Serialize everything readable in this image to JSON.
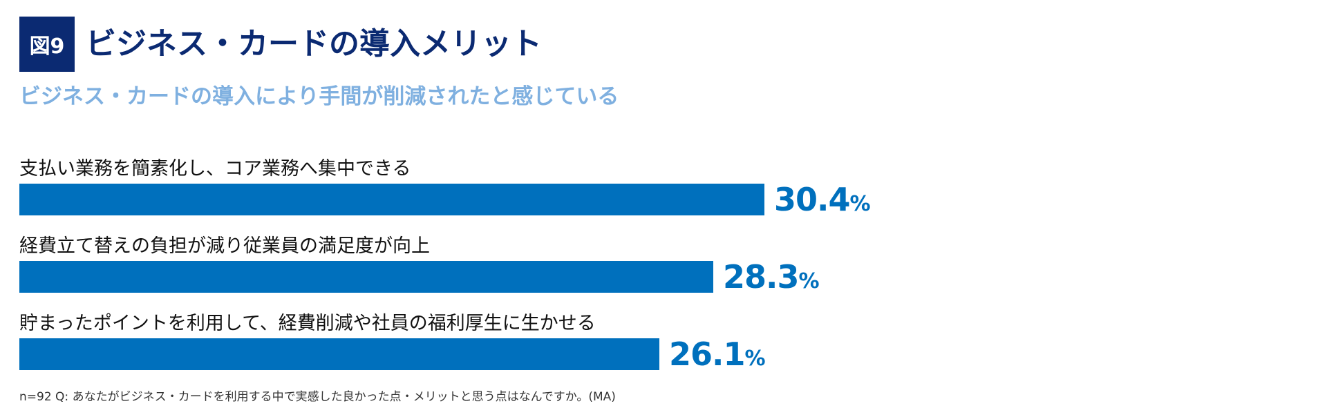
{
  "figure_label": "図9",
  "title": "ビジネス・カードの導入メリット",
  "subtitle": "ビジネス・カードの導入により手間が削減されたと感じている",
  "chart_data": {
    "type": "bar",
    "orientation": "horizontal",
    "categories": [
      "支払い業務を簡素化し、コア業務へ集中できる",
      "経費立て替えの負担が減り従業員の満足度が向上",
      "貯まったポイントを利用して、経費削減や社員の福利厚生に生かせる"
    ],
    "values": [
      30.4,
      28.3,
      26.1
    ],
    "value_labels": [
      "30.4",
      "28.3",
      "26.1"
    ],
    "unit": "%",
    "bar_color": "#0070bd",
    "grid": false
  },
  "footnote": "n=92 Q: あなたがビジネス・カードを利用する中で実感した良かった点・メリットと思う点はなんですか。(MA)",
  "colors": {
    "badge": "#0b2a72",
    "title": "#0b2a72",
    "subtitle": "#7fb0e0",
    "bar": "#0070bd",
    "value": "#0070bd"
  }
}
